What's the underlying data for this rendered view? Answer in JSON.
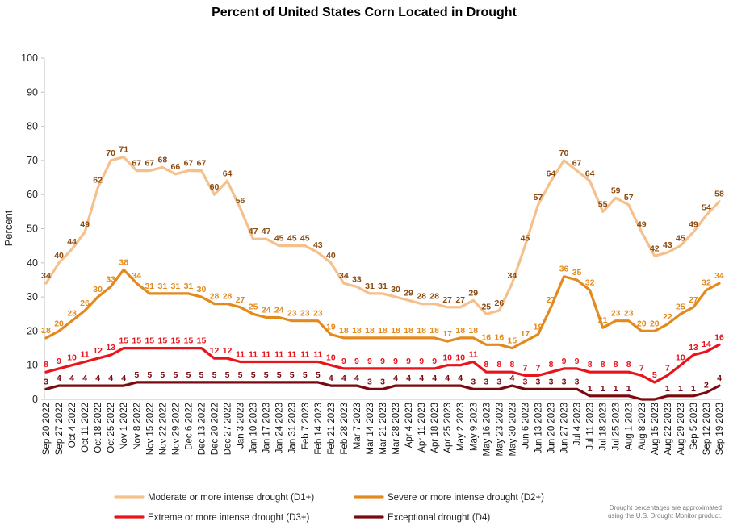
{
  "chart_data": {
    "type": "line",
    "title": "Percent of United States Corn Located in Drought",
    "xlabel": "",
    "ylabel": "Percent",
    "ylim": [
      0,
      100
    ],
    "yticks": [
      0,
      10,
      20,
      30,
      40,
      50,
      60,
      70,
      80,
      90,
      100
    ],
    "grid": false,
    "legend_position": "bottom",
    "categories": [
      "Sep 20 2022",
      "Sep 27 2022",
      "Oct 4 2022",
      "Oct 11 2022",
      "Oct 18 2022",
      "Oct 25 2022",
      "Nov 1 2022",
      "Nov 8 2022",
      "Nov 15 2022",
      "Nov 22 2022",
      "Nov 29 2022",
      "Dec 6 2022",
      "Dec 13 2022",
      "Dec 20 2022",
      "Dec 27 2022",
      "Jan 3 2023",
      "Jan 10 2023",
      "Jan 17 2023",
      "Jan 24 2023",
      "Jan 31 2023",
      "Feb 7 2023",
      "Feb 14 2023",
      "Feb 21 2023",
      "Feb 28 2023",
      "Mar 7 2023",
      "Mar 14 2023",
      "Mar 21 2023",
      "Mar 28 2023",
      "Apr 4 2023",
      "Apr 11 2023",
      "Apr 18 2023",
      "Apr 25 2023",
      "May 2 2023",
      "May 9 2023",
      "May 16 2023",
      "May 23 2023",
      "May 30 2023",
      "Jun 6 2023",
      "Jun 13 2023",
      "Jun 20 2023",
      "Jun 27 2023",
      "Jul 4 2023",
      "Jul 11 2023",
      "Jul 18 2023",
      "Jul 25 2023",
      "Aug 1 2023",
      "Aug 8 2023",
      "Aug 15 2023",
      "Aug 22 2023",
      "Aug 29 2023",
      "Sep 5 2023",
      "Sep 12 2023",
      "Sep 19 2023"
    ],
    "tick_labels": [
      "Sep 20 2022",
      "Sep 27 2022",
      "Oct 4 2022",
      "Oct 11 2022",
      "Oct 18 2022",
      "Oct 25 2022",
      "Nov 1 2022",
      "Nov 8 2022",
      "Nov 15 2022",
      "Nov 22 2022",
      "Nov 29 2022",
      "Dec 6 2022",
      "Dec 13 2022",
      "Dec 20 2022",
      "Dec 27 2022",
      "Jan 3 2023",
      "Jan 10 2023",
      "Jan 17 2023",
      "Jan 24 2023",
      "Jan 31 2023",
      "Feb 7 2023",
      "Feb 14 2023",
      "Feb 21 2023",
      "Feb 28 2023",
      "Mar 7 2023",
      "Mar 14 2023",
      "Mar 21 2023",
      "Mar 28 2023",
      "Apr 4 2023",
      "Apr 11 2023",
      "Apr 18 2023",
      "Apr 25 2023",
      "May 2 2023",
      "May 9 2023",
      "May 16 2023",
      "May 23 2023",
      "May 30 2023",
      "Jun 6 2023",
      "Jun 13 2023",
      "Jun 20 2023",
      "Jun 27 2023",
      "Jul 4 2023",
      "Jul 11 2023",
      "Jul 18 2023",
      "Jul 25 2023",
      "Aug 1 2023",
      "Aug 8 2023",
      "Aug 15 2023",
      "Aug 22 2023",
      "Aug 29 2023",
      "Sep 5 2023",
      "Sep 12 2023",
      "Sep 19 2023"
    ],
    "series": [
      {
        "name": "Moderate or more intense drought (D1+)",
        "color": "#F5C08C",
        "label_color": "#8B4A10",
        "values": [
          34,
          40,
          44,
          49,
          62,
          70,
          71,
          67,
          67,
          68,
          66,
          67,
          67,
          60,
          64,
          56,
          47,
          47,
          45,
          45,
          45,
          43,
          40,
          34,
          33,
          31,
          31,
          30,
          29,
          28,
          28,
          27,
          27,
          29,
          25,
          26,
          34,
          45,
          57,
          64,
          70,
          67,
          64,
          55,
          59,
          57,
          49,
          42,
          43,
          45,
          49,
          54,
          58
        ]
      },
      {
        "name": "Severe or more intense drought (D2+)",
        "color": "#E38A1E",
        "label_color": "#E38A1E",
        "values": [
          18,
          20,
          23,
          26,
          30,
          33,
          38,
          34,
          31,
          31,
          31,
          31,
          30,
          28,
          28,
          27,
          25,
          24,
          24,
          23,
          23,
          23,
          19,
          18,
          18,
          18,
          18,
          18,
          18,
          18,
          18,
          17,
          18,
          18,
          16,
          16,
          15,
          17,
          19,
          27,
          36,
          35,
          32,
          21,
          23,
          23,
          20,
          20,
          22,
          25,
          27,
          32,
          34
        ]
      },
      {
        "name": "Extreme or more intense drought (D3+)",
        "color": "#E8141C",
        "label_color": "#E8141C",
        "values": [
          8,
          9,
          10,
          11,
          12,
          13,
          15,
          15,
          15,
          15,
          15,
          15,
          15,
          12,
          12,
          11,
          11,
          11,
          11,
          11,
          11,
          11,
          10,
          9,
          9,
          9,
          9,
          9,
          9,
          9,
          9,
          10,
          10,
          11,
          8,
          8,
          8,
          7,
          7,
          8,
          9,
          9,
          8,
          8,
          8,
          8,
          7,
          5,
          7,
          10,
          13,
          14,
          16
        ]
      },
      {
        "name": "Exceptional drought (D4)",
        "color": "#7A0A0F",
        "label_color": "#7A0A0F",
        "values": [
          3,
          4,
          4,
          4,
          4,
          4,
          4,
          5,
          5,
          5,
          5,
          5,
          5,
          5,
          5,
          5,
          5,
          5,
          5,
          5,
          5,
          5,
          4,
          4,
          4,
          3,
          3,
          4,
          4,
          4,
          4,
          4,
          4,
          3,
          3,
          3,
          4,
          3,
          3,
          3,
          3,
          3,
          1,
          1,
          1,
          1,
          0,
          0,
          1,
          1,
          1,
          2,
          4
        ]
      }
    ],
    "data_labels": {
      "Moderate or more intense drought (D1+)": [
        "34",
        "40",
        "44",
        "49",
        "62",
        "70",
        "71",
        "67",
        "67",
        "68",
        "66",
        "67",
        "67",
        "60",
        "64",
        "56",
        "47",
        "47",
        "45",
        "45",
        "45",
        "43",
        "40",
        "34",
        "33",
        "31",
        "31",
        "30",
        "29",
        "28",
        "28",
        "27",
        "27",
        "29",
        "25",
        "26",
        "34",
        "45",
        "57",
        "64",
        "70",
        "67",
        "64",
        "55",
        "59",
        "57",
        "49",
        "42",
        "43",
        "45",
        "49",
        "54",
        "58"
      ],
      "Severe or more intense drought (D2+)": [
        "18",
        "20",
        "23",
        "26",
        "30",
        "33",
        "38",
        "34",
        "31",
        "31",
        "31",
        "31",
        "30",
        "28",
        "28",
        "27",
        "25",
        "24",
        "24",
        "23",
        "23",
        "23",
        "19",
        "18",
        "18",
        "18",
        "18",
        "18",
        "18",
        "18",
        "18",
        "17",
        "18",
        "18",
        "16",
        "16",
        "15",
        "17",
        "19",
        "27",
        "36",
        "35",
        "32",
        "21",
        "23",
        "23",
        "20",
        "20",
        "22",
        "25",
        "27",
        "32",
        "34"
      ],
      "Extreme or more intense drought (D3+)": [
        "8",
        "9",
        "10",
        "11",
        "12",
        "13",
        "15",
        "15",
        "15",
        "15",
        "15",
        "15",
        "15",
        "12",
        "12",
        "11",
        "11",
        "11",
        "11",
        "11",
        "11",
        "11",
        "10",
        "9",
        "9",
        "9",
        "9",
        "9",
        "9",
        "9",
        "9",
        "10",
        "10",
        "11",
        "8",
        "8",
        "8",
        "7",
        "7",
        "8",
        "9",
        "9",
        "8",
        "8",
        "8",
        "8",
        "7",
        "5",
        "7",
        "10",
        "13",
        "14",
        "16"
      ],
      "Exceptional drought (D4)": [
        "3",
        "4",
        "4",
        "4",
        "4",
        "4",
        "4",
        "5",
        "5",
        "5",
        "5",
        "5",
        "5",
        "5",
        "5",
        "5",
        "5",
        "5",
        "5",
        "5",
        "5",
        "5",
        "4",
        "4",
        "4",
        "3",
        "3",
        "4",
        "4",
        "4",
        "4",
        "4",
        "4",
        "3",
        "3",
        "3",
        "4",
        "3",
        "3",
        "3",
        "3",
        "3",
        "1",
        "1",
        "1",
        "1",
        "",
        "",
        "1",
        "1",
        "1",
        "2",
        "4"
      ]
    },
    "note": [
      "Drought percentages are approximated",
      "using the U.S. Drought Monitor product."
    ]
  }
}
